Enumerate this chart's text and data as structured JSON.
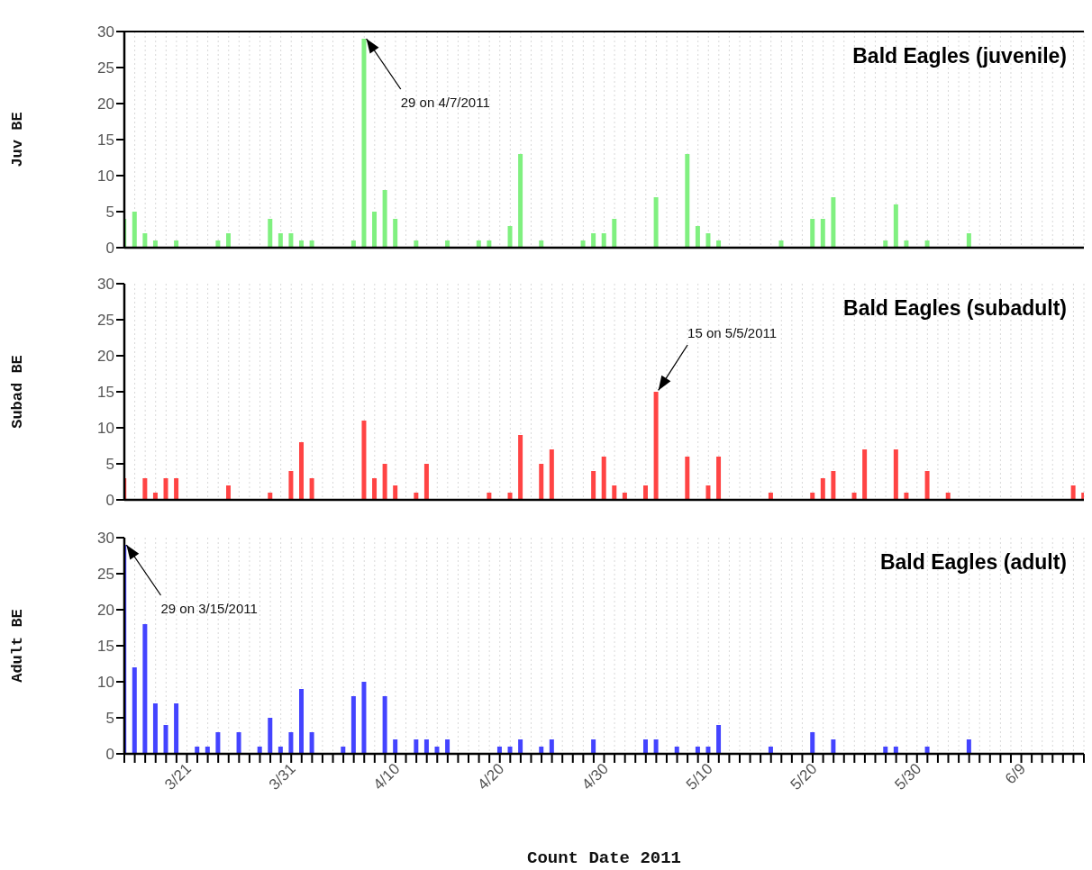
{
  "chart_data": [
    {
      "type": "bar",
      "title": "Bald Eagles (juvenile)",
      "ylabel": "Juv BE",
      "color": "#80f080",
      "x": [
        "2011-03-15",
        "2011-03-16",
        "2011-03-17",
        "2011-03-18",
        "2011-03-20",
        "2011-03-24",
        "2011-03-25",
        "2011-03-29",
        "2011-03-30",
        "2011-03-31",
        "2011-04-01",
        "2011-04-02",
        "2011-04-06",
        "2011-04-07",
        "2011-04-08",
        "2011-04-09",
        "2011-04-10",
        "2011-04-12",
        "2011-04-15",
        "2011-04-18",
        "2011-04-19",
        "2011-04-21",
        "2011-04-22",
        "2011-04-24",
        "2011-04-28",
        "2011-04-29",
        "2011-04-30",
        "2011-05-01",
        "2011-05-05",
        "2011-05-08",
        "2011-05-09",
        "2011-05-10",
        "2011-05-11",
        "2011-05-17",
        "2011-05-20",
        "2011-05-21",
        "2011-05-22",
        "2011-05-27",
        "2011-05-28",
        "2011-05-29",
        "2011-05-31",
        "2011-06-04"
      ],
      "values": [
        4,
        5,
        2,
        1,
        1,
        1,
        2,
        4,
        2,
        2,
        1,
        1,
        1,
        29,
        5,
        8,
        4,
        1,
        1,
        1,
        1,
        3,
        13,
        1,
        1,
        2,
        2,
        4,
        7,
        13,
        3,
        2,
        1,
        1,
        4,
        4,
        7,
        1,
        6,
        1,
        1,
        2
      ],
      "annotations": [
        {
          "text": "29 on 4/7/2011",
          "x": "2011-04-07",
          "y": 29
        }
      ],
      "xlim": [
        "2011-03-15",
        "2011-06-15"
      ],
      "ylim": [
        0,
        30
      ],
      "yticks": [
        0,
        5,
        10,
        15,
        20,
        25,
        30
      ],
      "grid": "x",
      "tick_labels": "y",
      "xticks": [
        {
          "value": "2011-03-15",
          "label": null
        },
        {
          "value": "2011-03-16",
          "label": null
        },
        {
          "value": "2011-03-17",
          "label": null
        },
        {
          "value": "2011-03-18",
          "label": null
        },
        {
          "value": "2011-03-19",
          "label": null
        },
        {
          "value": "2011-03-20",
          "label": null
        },
        {
          "value": "2011-03-21",
          "label": null
        },
        {
          "value": "2011-03-22",
          "label": null
        },
        {
          "value": "2011-03-23",
          "label": null
        },
        {
          "value": "2011-03-24",
          "label": null
        },
        {
          "value": "2011-03-25",
          "label": null
        },
        {
          "value": "2011-03-26",
          "label": null
        },
        {
          "value": "2011-03-27",
          "label": null
        },
        {
          "value": "2011-03-28",
          "label": null
        },
        {
          "value": "2011-03-29",
          "label": null
        },
        {
          "value": "2011-03-30",
          "label": null
        },
        {
          "value": "2011-03-31",
          "label": null
        },
        {
          "value": "2011-04-01",
          "label": null
        },
        {
          "value": "2011-04-02",
          "label": null
        },
        {
          "value": "2011-04-03",
          "label": null
        },
        {
          "value": "2011-04-04",
          "label": null
        },
        {
          "value": "2011-04-05",
          "label": null
        },
        {
          "value": "2011-04-06",
          "label": null
        },
        {
          "value": "2011-04-07",
          "label": null
        },
        {
          "value": "2011-04-08",
          "label": null
        },
        {
          "value": "2011-04-09",
          "label": null
        },
        {
          "value": "2011-04-10",
          "label": null
        },
        {
          "value": "2011-04-11",
          "label": null
        },
        {
          "value": "2011-04-12",
          "label": null
        },
        {
          "value": "2011-04-13",
          "label": null
        },
        {
          "value": "2011-04-14",
          "label": null
        },
        {
          "value": "2011-04-15",
          "label": null
        },
        {
          "value": "2011-04-16",
          "label": null
        },
        {
          "value": "2011-04-17",
          "label": null
        },
        {
          "value": "2011-04-18",
          "label": null
        },
        {
          "value": "2011-04-19",
          "label": null
        },
        {
          "value": "2011-04-20",
          "label": null
        },
        {
          "value": "2011-04-21",
          "label": null
        },
        {
          "value": "2011-04-22",
          "label": null
        },
        {
          "value": "2011-04-23",
          "label": null
        },
        {
          "value": "2011-04-24",
          "label": null
        },
        {
          "value": "2011-04-25",
          "label": null
        },
        {
          "value": "2011-04-26",
          "label": null
        },
        {
          "value": "2011-04-27",
          "label": null
        },
        {
          "value": "2011-04-28",
          "label": null
        },
        {
          "value": "2011-04-29",
          "label": null
        },
        {
          "value": "2011-04-30",
          "label": null
        },
        {
          "value": "2011-05-01",
          "label": null
        },
        {
          "value": "2011-05-02",
          "label": null
        },
        {
          "value": "2011-05-03",
          "label": null
        },
        {
          "value": "2011-05-04",
          "label": null
        },
        {
          "value": "2011-05-05",
          "label": null
        },
        {
          "value": "2011-05-06",
          "label": null
        },
        {
          "value": "2011-05-07",
          "label": null
        },
        {
          "value": "2011-05-08",
          "label": null
        },
        {
          "value": "2011-05-09",
          "label": null
        },
        {
          "value": "2011-05-10",
          "label": null
        },
        {
          "value": "2011-05-11",
          "label": null
        },
        {
          "value": "2011-05-12",
          "label": null
        },
        {
          "value": "2011-05-13",
          "label": null
        },
        {
          "value": "2011-05-14",
          "label": null
        },
        {
          "value": "2011-05-15",
          "label": null
        },
        {
          "value": "2011-05-16",
          "label": null
        },
        {
          "value": "2011-05-17",
          "label": null
        },
        {
          "value": "2011-05-18",
          "label": null
        },
        {
          "value": "2011-05-19",
          "label": null
        },
        {
          "value": "2011-05-20",
          "label": null
        },
        {
          "value": "2011-05-21",
          "label": null
        },
        {
          "value": "2011-05-22",
          "label": null
        },
        {
          "value": "2011-05-23",
          "label": null
        },
        {
          "value": "2011-05-24",
          "label": null
        },
        {
          "value": "2011-05-25",
          "label": null
        },
        {
          "value": "2011-05-26",
          "label": null
        },
        {
          "value": "2011-05-27",
          "label": null
        },
        {
          "value": "2011-05-28",
          "label": null
        },
        {
          "value": "2011-05-29",
          "label": null
        },
        {
          "value": "2011-05-30",
          "label": null
        },
        {
          "value": "2011-05-31",
          "label": null
        },
        {
          "value": "2011-06-01",
          "label": null
        },
        {
          "value": "2011-06-02",
          "label": null
        },
        {
          "value": "2011-06-03",
          "label": null
        },
        {
          "value": "2011-06-04",
          "label": null
        },
        {
          "value": "2011-06-05",
          "label": null
        },
        {
          "value": "2011-06-06",
          "label": null
        },
        {
          "value": "2011-06-07",
          "label": null
        },
        {
          "value": "2011-06-08",
          "label": null
        },
        {
          "value": "2011-06-09",
          "label": null
        },
        {
          "value": "2011-06-10",
          "label": null
        },
        {
          "value": "2011-06-11",
          "label": null
        },
        {
          "value": "2011-06-12",
          "label": null
        },
        {
          "value": "2011-06-13",
          "label": null
        },
        {
          "value": "2011-06-14",
          "label": null
        },
        {
          "value": "2011-06-15",
          "label": null
        }
      ]
    },
    {
      "type": "bar",
      "title": "Bald Eagles (subadult)",
      "ylabel": "Subad BE",
      "color": "#ff4444",
      "x": [
        "2011-03-15",
        "2011-03-17",
        "2011-03-18",
        "2011-03-19",
        "2011-03-20",
        "2011-03-25",
        "2011-03-29",
        "2011-03-31",
        "2011-04-01",
        "2011-04-02",
        "2011-04-07",
        "2011-04-08",
        "2011-04-09",
        "2011-04-10",
        "2011-04-12",
        "2011-04-13",
        "2011-04-19",
        "2011-04-21",
        "2011-04-22",
        "2011-04-24",
        "2011-04-25",
        "2011-04-29",
        "2011-04-30",
        "2011-05-01",
        "2011-05-02",
        "2011-05-04",
        "2011-05-05",
        "2011-05-08",
        "2011-05-10",
        "2011-05-11",
        "2011-05-16",
        "2011-05-20",
        "2011-05-21",
        "2011-05-22",
        "2011-05-24",
        "2011-05-25",
        "2011-05-28",
        "2011-05-29",
        "2011-05-31",
        "2011-06-02",
        "2011-06-14",
        "2011-06-15"
      ],
      "values": [
        3,
        3,
        1,
        3,
        3,
        2,
        1,
        4,
        8,
        3,
        11,
        3,
        5,
        2,
        1,
        5,
        1,
        1,
        9,
        5,
        7,
        4,
        6,
        2,
        1,
        2,
        15,
        6,
        2,
        6,
        1,
        1,
        3,
        4,
        1,
        7,
        7,
        1,
        4,
        1,
        2,
        1
      ],
      "annotations": [
        {
          "text": "15 on 5/5/2011",
          "x": "2011-05-05",
          "y": 15
        }
      ],
      "xlim": [
        "2011-03-15",
        "2011-06-15"
      ],
      "ylim": [
        0,
        30
      ],
      "yticks": [
        0,
        5,
        10,
        15,
        20,
        25,
        30
      ],
      "grid": "x",
      "tick_labels": "y",
      "xticks": [
        {
          "value": "2011-03-15",
          "label": null
        },
        {
          "value": "2011-03-16",
          "label": null
        },
        {
          "value": "2011-03-17",
          "label": null
        },
        {
          "value": "2011-03-18",
          "label": null
        },
        {
          "value": "2011-03-19",
          "label": null
        },
        {
          "value": "2011-03-20",
          "label": null
        },
        {
          "value": "2011-03-21",
          "label": null
        },
        {
          "value": "2011-03-22",
          "label": null
        },
        {
          "value": "2011-03-23",
          "label": null
        },
        {
          "value": "2011-03-24",
          "label": null
        },
        {
          "value": "2011-03-25",
          "label": null
        },
        {
          "value": "2011-03-26",
          "label": null
        },
        {
          "value": "2011-03-27",
          "label": null
        },
        {
          "value": "2011-03-28",
          "label": null
        },
        {
          "value": "2011-03-29",
          "label": null
        },
        {
          "value": "2011-03-30",
          "label": null
        },
        {
          "value": "2011-03-31",
          "label": null
        },
        {
          "value": "2011-04-01",
          "label": null
        },
        {
          "value": "2011-04-02",
          "label": null
        },
        {
          "value": "2011-04-03",
          "label": null
        },
        {
          "value": "2011-04-04",
          "label": null
        },
        {
          "value": "2011-04-05",
          "label": null
        },
        {
          "value": "2011-04-06",
          "label": null
        },
        {
          "value": "2011-04-07",
          "label": null
        },
        {
          "value": "2011-04-08",
          "label": null
        },
        {
          "value": "2011-04-09",
          "label": null
        },
        {
          "value": "2011-04-10",
          "label": null
        },
        {
          "value": "2011-04-11",
          "label": null
        },
        {
          "value": "2011-04-12",
          "label": null
        },
        {
          "value": "2011-04-13",
          "label": null
        },
        {
          "value": "2011-04-14",
          "label": null
        },
        {
          "value": "2011-04-15",
          "label": null
        },
        {
          "value": "2011-04-16",
          "label": null
        },
        {
          "value": "2011-04-17",
          "label": null
        },
        {
          "value": "2011-04-18",
          "label": null
        },
        {
          "value": "2011-04-19",
          "label": null
        },
        {
          "value": "2011-04-20",
          "label": null
        },
        {
          "value": "2011-04-21",
          "label": null
        },
        {
          "value": "2011-04-22",
          "label": null
        },
        {
          "value": "2011-04-23",
          "label": null
        },
        {
          "value": "2011-04-24",
          "label": null
        },
        {
          "value": "2011-04-25",
          "label": null
        },
        {
          "value": "2011-04-26",
          "label": null
        },
        {
          "value": "2011-04-27",
          "label": null
        },
        {
          "value": "2011-04-28",
          "label": null
        },
        {
          "value": "2011-04-29",
          "label": null
        },
        {
          "value": "2011-04-30",
          "label": null
        },
        {
          "value": "2011-05-01",
          "label": null
        },
        {
          "value": "2011-05-02",
          "label": null
        },
        {
          "value": "2011-05-03",
          "label": null
        },
        {
          "value": "2011-05-04",
          "label": null
        },
        {
          "value": "2011-05-05",
          "label": null
        },
        {
          "value": "2011-05-06",
          "label": null
        },
        {
          "value": "2011-05-07",
          "label": null
        },
        {
          "value": "2011-05-08",
          "label": null
        },
        {
          "value": "2011-05-09",
          "label": null
        },
        {
          "value": "2011-05-10",
          "label": null
        },
        {
          "value": "2011-05-11",
          "label": null
        },
        {
          "value": "2011-05-12",
          "label": null
        },
        {
          "value": "2011-05-13",
          "label": null
        },
        {
          "value": "2011-05-14",
          "label": null
        },
        {
          "value": "2011-05-15",
          "label": null
        },
        {
          "value": "2011-05-16",
          "label": null
        },
        {
          "value": "2011-05-17",
          "label": null
        },
        {
          "value": "2011-05-18",
          "label": null
        },
        {
          "value": "2011-05-19",
          "label": null
        },
        {
          "value": "2011-05-20",
          "label": null
        },
        {
          "value": "2011-05-21",
          "label": null
        },
        {
          "value": "2011-05-22",
          "label": null
        },
        {
          "value": "2011-05-23",
          "label": null
        },
        {
          "value": "2011-05-24",
          "label": null
        },
        {
          "value": "2011-05-25",
          "label": null
        },
        {
          "value": "2011-05-26",
          "label": null
        },
        {
          "value": "2011-05-27",
          "label": null
        },
        {
          "value": "2011-05-28",
          "label": null
        },
        {
          "value": "2011-05-29",
          "label": null
        },
        {
          "value": "2011-05-30",
          "label": null
        },
        {
          "value": "2011-05-31",
          "label": null
        },
        {
          "value": "2011-06-01",
          "label": null
        },
        {
          "value": "2011-06-02",
          "label": null
        },
        {
          "value": "2011-06-03",
          "label": null
        },
        {
          "value": "2011-06-04",
          "label": null
        },
        {
          "value": "2011-06-05",
          "label": null
        },
        {
          "value": "2011-06-06",
          "label": null
        },
        {
          "value": "2011-06-07",
          "label": null
        },
        {
          "value": "2011-06-08",
          "label": null
        },
        {
          "value": "2011-06-09",
          "label": null
        },
        {
          "value": "2011-06-10",
          "label": null
        },
        {
          "value": "2011-06-11",
          "label": null
        },
        {
          "value": "2011-06-12",
          "label": null
        },
        {
          "value": "2011-06-13",
          "label": null
        },
        {
          "value": "2011-06-14",
          "label": null
        },
        {
          "value": "2011-06-15",
          "label": null
        }
      ]
    },
    {
      "type": "bar",
      "title": "Bald Eagles (adult)",
      "ylabel": "Adult BE",
      "xlabel": "Count Date 2011",
      "color": "#4444ff",
      "x": [
        "2011-03-15",
        "2011-03-16",
        "2011-03-17",
        "2011-03-18",
        "2011-03-19",
        "2011-03-20",
        "2011-03-22",
        "2011-03-23",
        "2011-03-24",
        "2011-03-26",
        "2011-03-28",
        "2011-03-29",
        "2011-03-30",
        "2011-03-31",
        "2011-04-01",
        "2011-04-02",
        "2011-04-05",
        "2011-04-06",
        "2011-04-07",
        "2011-04-09",
        "2011-04-10",
        "2011-04-12",
        "2011-04-13",
        "2011-04-14",
        "2011-04-15",
        "2011-04-20",
        "2011-04-21",
        "2011-04-22",
        "2011-04-24",
        "2011-04-25",
        "2011-04-29",
        "2011-05-04",
        "2011-05-05",
        "2011-05-07",
        "2011-05-09",
        "2011-05-10",
        "2011-05-11",
        "2011-05-16",
        "2011-05-20",
        "2011-05-22",
        "2011-05-27",
        "2011-05-28",
        "2011-05-31",
        "2011-06-04"
      ],
      "values": [
        29,
        12,
        18,
        7,
        4,
        7,
        1,
        1,
        3,
        3,
        1,
        5,
        1,
        3,
        9,
        3,
        1,
        8,
        10,
        8,
        2,
        2,
        2,
        1,
        2,
        1,
        1,
        2,
        1,
        2,
        2,
        2,
        2,
        1,
        1,
        1,
        4,
        1,
        3,
        2,
        1,
        1,
        1,
        2
      ],
      "annotations": [
        {
          "text": "29 on 3/15/2011",
          "x": "2011-03-15",
          "y": 29
        }
      ],
      "xlim": [
        "2011-03-15",
        "2011-06-15"
      ],
      "ylim": [
        0,
        30
      ],
      "yticks": [
        0,
        5,
        10,
        15,
        20,
        25,
        30
      ],
      "grid": "x",
      "xticks": [
        {
          "value": "2011-03-15",
          "label": null
        },
        {
          "value": "2011-03-16",
          "label": null
        },
        {
          "value": "2011-03-17",
          "label": null
        },
        {
          "value": "2011-03-18",
          "label": null
        },
        {
          "value": "2011-03-19",
          "label": null
        },
        {
          "value": "2011-03-20",
          "label": null
        },
        {
          "value": "2011-03-21",
          "label": "3/21"
        },
        {
          "value": "2011-03-22",
          "label": null
        },
        {
          "value": "2011-03-23",
          "label": null
        },
        {
          "value": "2011-03-24",
          "label": null
        },
        {
          "value": "2011-03-25",
          "label": null
        },
        {
          "value": "2011-03-26",
          "label": null
        },
        {
          "value": "2011-03-27",
          "label": null
        },
        {
          "value": "2011-03-28",
          "label": null
        },
        {
          "value": "2011-03-29",
          "label": null
        },
        {
          "value": "2011-03-30",
          "label": null
        },
        {
          "value": "2011-03-31",
          "label": "3/31"
        },
        {
          "value": "2011-04-01",
          "label": null
        },
        {
          "value": "2011-04-02",
          "label": null
        },
        {
          "value": "2011-04-03",
          "label": null
        },
        {
          "value": "2011-04-04",
          "label": null
        },
        {
          "value": "2011-04-05",
          "label": null
        },
        {
          "value": "2011-04-06",
          "label": null
        },
        {
          "value": "2011-04-07",
          "label": null
        },
        {
          "value": "2011-04-08",
          "label": null
        },
        {
          "value": "2011-04-09",
          "label": null
        },
        {
          "value": "2011-04-10",
          "label": "4/10"
        },
        {
          "value": "2011-04-11",
          "label": null
        },
        {
          "value": "2011-04-12",
          "label": null
        },
        {
          "value": "2011-04-13",
          "label": null
        },
        {
          "value": "2011-04-14",
          "label": null
        },
        {
          "value": "2011-04-15",
          "label": null
        },
        {
          "value": "2011-04-16",
          "label": null
        },
        {
          "value": "2011-04-17",
          "label": null
        },
        {
          "value": "2011-04-18",
          "label": null
        },
        {
          "value": "2011-04-19",
          "label": null
        },
        {
          "value": "2011-04-20",
          "label": "4/20"
        },
        {
          "value": "2011-04-21",
          "label": null
        },
        {
          "value": "2011-04-22",
          "label": null
        },
        {
          "value": "2011-04-23",
          "label": null
        },
        {
          "value": "2011-04-24",
          "label": null
        },
        {
          "value": "2011-04-25",
          "label": null
        },
        {
          "value": "2011-04-26",
          "label": null
        },
        {
          "value": "2011-04-27",
          "label": null
        },
        {
          "value": "2011-04-28",
          "label": null
        },
        {
          "value": "2011-04-29",
          "label": null
        },
        {
          "value": "2011-04-30",
          "label": "4/30"
        },
        {
          "value": "2011-05-01",
          "label": null
        },
        {
          "value": "2011-05-02",
          "label": null
        },
        {
          "value": "2011-05-03",
          "label": null
        },
        {
          "value": "2011-05-04",
          "label": null
        },
        {
          "value": "2011-05-05",
          "label": null
        },
        {
          "value": "2011-05-06",
          "label": null
        },
        {
          "value": "2011-05-07",
          "label": null
        },
        {
          "value": "2011-05-08",
          "label": null
        },
        {
          "value": "2011-05-09",
          "label": null
        },
        {
          "value": "2011-05-10",
          "label": "5/10"
        },
        {
          "value": "2011-05-11",
          "label": null
        },
        {
          "value": "2011-05-12",
          "label": null
        },
        {
          "value": "2011-05-13",
          "label": null
        },
        {
          "value": "2011-05-14",
          "label": null
        },
        {
          "value": "2011-05-15",
          "label": null
        },
        {
          "value": "2011-05-16",
          "label": null
        },
        {
          "value": "2011-05-17",
          "label": null
        },
        {
          "value": "2011-05-18",
          "label": null
        },
        {
          "value": "2011-05-19",
          "label": null
        },
        {
          "value": "2011-05-20",
          "label": "5/20"
        },
        {
          "value": "2011-05-21",
          "label": null
        },
        {
          "value": "2011-05-22",
          "label": null
        },
        {
          "value": "2011-05-23",
          "label": null
        },
        {
          "value": "2011-05-24",
          "label": null
        },
        {
          "value": "2011-05-25",
          "label": null
        },
        {
          "value": "2011-05-26",
          "label": null
        },
        {
          "value": "2011-05-27",
          "label": null
        },
        {
          "value": "2011-05-28",
          "label": null
        },
        {
          "value": "2011-05-29",
          "label": null
        },
        {
          "value": "2011-05-30",
          "label": "5/30"
        },
        {
          "value": "2011-05-31",
          "label": null
        },
        {
          "value": "2011-06-01",
          "label": null
        },
        {
          "value": "2011-06-02",
          "label": null
        },
        {
          "value": "2011-06-03",
          "label": null
        },
        {
          "value": "2011-06-04",
          "label": null
        },
        {
          "value": "2011-06-05",
          "label": null
        },
        {
          "value": "2011-06-06",
          "label": null
        },
        {
          "value": "2011-06-07",
          "label": null
        },
        {
          "value": "2011-06-08",
          "label": null
        },
        {
          "value": "2011-06-09",
          "label": "6/9"
        },
        {
          "value": "2011-06-10",
          "label": null
        },
        {
          "value": "2011-06-11",
          "label": null
        },
        {
          "value": "2011-06-12",
          "label": null
        },
        {
          "value": "2011-06-13",
          "label": null
        },
        {
          "value": "2011-06-14",
          "label": null
        },
        {
          "value": "2011-06-15",
          "label": null
        }
      ]
    }
  ]
}
